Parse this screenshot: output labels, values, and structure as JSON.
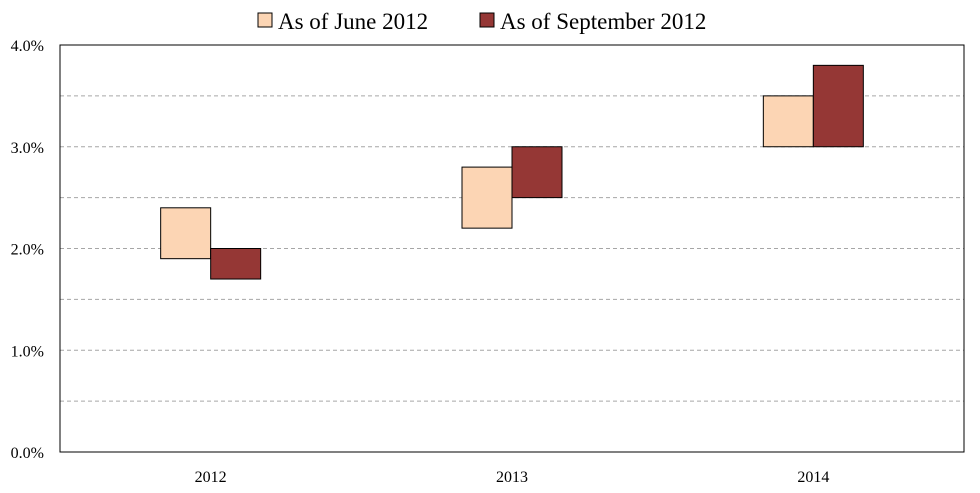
{
  "chart_data": {
    "type": "bar",
    "subtype": "floating-range",
    "categories": [
      "2012",
      "2013",
      "2014"
    ],
    "series": [
      {
        "name": "As of June 2012",
        "color": "#FCD5B4",
        "ranges": [
          [
            1.9,
            2.4
          ],
          [
            2.2,
            2.8
          ],
          [
            3.0,
            3.5
          ]
        ]
      },
      {
        "name": "As of September 2012",
        "color": "#953735",
        "ranges": [
          [
            1.7,
            2.0
          ],
          [
            2.5,
            3.0
          ],
          [
            3.0,
            3.8
          ]
        ]
      }
    ],
    "yticks": [
      "0.0%",
      "1.0%",
      "2.0%",
      "3.0%",
      "4.0%"
    ],
    "ylim": [
      0,
      4
    ],
    "grid": "horizontal dashed every 0.5",
    "legend_position": "top"
  }
}
